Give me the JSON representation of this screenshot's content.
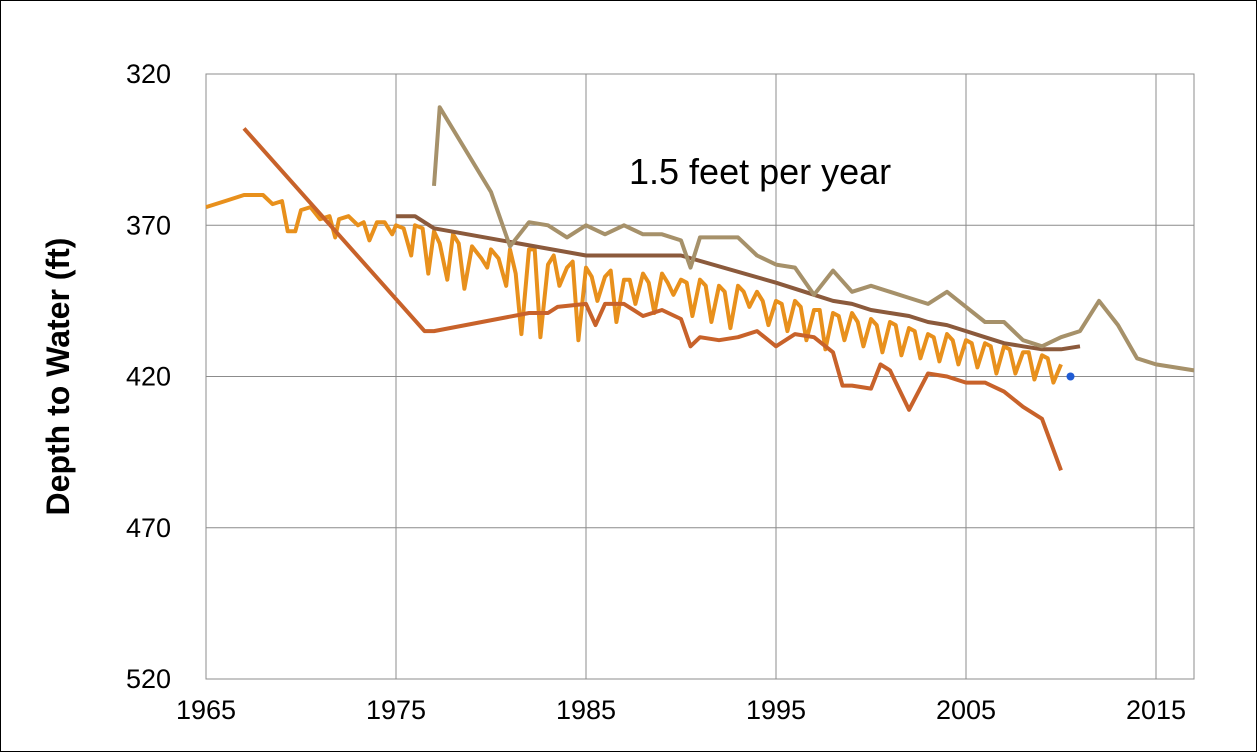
{
  "chart_data": {
    "type": "line",
    "title": "",
    "xlabel": "",
    "ylabel": "Depth to Water (ft)",
    "annotation": "1.5 feet per year",
    "xlim": [
      1965,
      2017
    ],
    "ylim": [
      320,
      520
    ],
    "y_inverted": true,
    "grid": true,
    "legend": "none",
    "x_ticks": [
      1965,
      1975,
      1985,
      1995,
      2005,
      2015
    ],
    "y_ticks": [
      320,
      370,
      420,
      470,
      520
    ],
    "x_tick_labels": [
      "1965",
      "1975",
      "1985",
      "1995",
      "2005",
      "2015"
    ],
    "y_tick_labels": [
      "320",
      "370",
      "420",
      "470",
      "520"
    ],
    "series": [
      {
        "color": "#e8901c",
        "points": [
          [
            1965,
            364
          ],
          [
            1966,
            362
          ],
          [
            1967,
            360
          ],
          [
            1968,
            360
          ],
          [
            1968.5,
            363
          ],
          [
            1969,
            362
          ],
          [
            1969.3,
            372
          ],
          [
            1969.7,
            372
          ],
          [
            1970,
            365
          ],
          [
            1970.5,
            364
          ],
          [
            1971,
            368
          ],
          [
            1971.5,
            367
          ],
          [
            1971.8,
            374
          ],
          [
            1972,
            368
          ],
          [
            1972.5,
            367
          ],
          [
            1973,
            370
          ],
          [
            1973.3,
            369
          ],
          [
            1973.6,
            375
          ],
          [
            1974,
            369
          ],
          [
            1974.4,
            369
          ],
          [
            1974.8,
            373
          ],
          [
            1975,
            370
          ],
          [
            1975.4,
            371
          ],
          [
            1975.8,
            380
          ],
          [
            1976,
            370
          ],
          [
            1976.4,
            371
          ],
          [
            1976.7,
            386
          ],
          [
            1977,
            372
          ],
          [
            1977.3,
            376
          ],
          [
            1977.7,
            388
          ],
          [
            1978,
            373
          ],
          [
            1978.3,
            376
          ],
          [
            1978.6,
            391
          ],
          [
            1979,
            377
          ],
          [
            1979.5,
            381
          ],
          [
            1979.8,
            384
          ],
          [
            1980,
            378
          ],
          [
            1980.4,
            381
          ],
          [
            1980.8,
            390
          ],
          [
            1981,
            378
          ],
          [
            1981.3,
            386
          ],
          [
            1981.6,
            406
          ],
          [
            1982,
            378
          ],
          [
            1982.3,
            378
          ],
          [
            1982.6,
            407
          ],
          [
            1983,
            383
          ],
          [
            1983.3,
            380
          ],
          [
            1983.6,
            390
          ],
          [
            1984,
            384
          ],
          [
            1984.3,
            382
          ],
          [
            1984.6,
            408
          ],
          [
            1985,
            384
          ],
          [
            1985.3,
            387
          ],
          [
            1985.6,
            395
          ],
          [
            1986,
            387
          ],
          [
            1986.3,
            385
          ],
          [
            1986.6,
            402
          ],
          [
            1987,
            388
          ],
          [
            1987.3,
            388
          ],
          [
            1987.6,
            396
          ],
          [
            1988,
            386
          ],
          [
            1988.3,
            389
          ],
          [
            1988.6,
            399
          ],
          [
            1989,
            386
          ],
          [
            1989.3,
            389
          ],
          [
            1989.6,
            393
          ],
          [
            1990,
            388
          ],
          [
            1990.3,
            389
          ],
          [
            1990.6,
            400
          ],
          [
            1991,
            388
          ],
          [
            1991.3,
            390
          ],
          [
            1991.6,
            402
          ],
          [
            1992,
            390
          ],
          [
            1992.3,
            392
          ],
          [
            1992.6,
            404
          ],
          [
            1993,
            390
          ],
          [
            1993.3,
            392
          ],
          [
            1993.6,
            397
          ],
          [
            1994,
            392
          ],
          [
            1994.3,
            395
          ],
          [
            1994.6,
            403
          ],
          [
            1995,
            395
          ],
          [
            1995.3,
            396
          ],
          [
            1995.6,
            405
          ],
          [
            1996,
            395
          ],
          [
            1996.3,
            397
          ],
          [
            1996.6,
            408
          ],
          [
            1997,
            398
          ],
          [
            1997.3,
            398
          ],
          [
            1997.6,
            411
          ],
          [
            1998,
            399
          ],
          [
            1998.3,
            400
          ],
          [
            1998.6,
            408
          ],
          [
            1999,
            399
          ],
          [
            1999.3,
            402
          ],
          [
            1999.6,
            410
          ],
          [
            2000,
            401
          ],
          [
            2000.3,
            403
          ],
          [
            2000.6,
            412
          ],
          [
            2001,
            402
          ],
          [
            2001.3,
            403
          ],
          [
            2001.6,
            413
          ],
          [
            2002,
            404
          ],
          [
            2002.3,
            405
          ],
          [
            2002.6,
            414
          ],
          [
            2003,
            406
          ],
          [
            2003.3,
            407
          ],
          [
            2003.6,
            415
          ],
          [
            2004,
            406
          ],
          [
            2004.3,
            408
          ],
          [
            2004.6,
            416
          ],
          [
            2005,
            408
          ],
          [
            2005.3,
            409
          ],
          [
            2005.6,
            417
          ],
          [
            2006,
            409
          ],
          [
            2006.3,
            410
          ],
          [
            2006.6,
            419
          ],
          [
            2007,
            410
          ],
          [
            2007.3,
            411
          ],
          [
            2007.6,
            419
          ],
          [
            2008,
            412
          ],
          [
            2008.3,
            412
          ],
          [
            2008.6,
            421
          ],
          [
            2009,
            413
          ],
          [
            2009.3,
            414
          ],
          [
            2009.6,
            422
          ],
          [
            2010,
            416
          ]
        ]
      },
      {
        "color": "#c8622a",
        "points": [
          [
            1967,
            338
          ],
          [
            1976.5,
            405
          ],
          [
            1977,
            405
          ],
          [
            1982,
            399
          ],
          [
            1983,
            399
          ],
          [
            1983.5,
            397
          ],
          [
            1985,
            396
          ],
          [
            1985.5,
            403
          ],
          [
            1986,
            396
          ],
          [
            1987,
            396
          ],
          [
            1988,
            400
          ],
          [
            1989,
            398
          ],
          [
            1990,
            401
          ],
          [
            1990.5,
            410
          ],
          [
            1991,
            407
          ],
          [
            1992,
            408
          ],
          [
            1993,
            407
          ],
          [
            1994,
            405
          ],
          [
            1995,
            410
          ],
          [
            1996,
            406
          ],
          [
            1997,
            407
          ],
          [
            1998,
            412
          ],
          [
            1998.5,
            423
          ],
          [
            1999,
            423
          ],
          [
            2000,
            424
          ],
          [
            2000.5,
            416
          ],
          [
            2001,
            418
          ],
          [
            2002,
            431
          ],
          [
            2003,
            419
          ],
          [
            2004,
            420
          ],
          [
            2005,
            422
          ],
          [
            2006,
            422
          ],
          [
            2007,
            425
          ],
          [
            2008,
            430
          ],
          [
            2009,
            434
          ],
          [
            2010,
            451
          ]
        ]
      },
      {
        "color": "#8b5a3c",
        "points": [
          [
            1975,
            367
          ],
          [
            1976,
            367
          ],
          [
            1977,
            371
          ],
          [
            1985,
            380
          ],
          [
            1990,
            380
          ],
          [
            1995,
            389
          ],
          [
            1997,
            393
          ],
          [
            1998,
            395
          ],
          [
            1999,
            396
          ],
          [
            2000,
            398
          ],
          [
            2001,
            399
          ],
          [
            2002,
            400
          ],
          [
            2003,
            402
          ],
          [
            2004,
            403
          ],
          [
            2005,
            405
          ],
          [
            2006,
            407
          ],
          [
            2007,
            409
          ],
          [
            2008,
            410
          ],
          [
            2009,
            411
          ],
          [
            2010,
            411
          ],
          [
            2011,
            410
          ]
        ]
      },
      {
        "color": "#a6916a",
        "points": [
          [
            1977,
            357
          ],
          [
            1977.3,
            331
          ],
          [
            1980,
            359
          ],
          [
            1981,
            377
          ],
          [
            1982,
            369
          ],
          [
            1983,
            370
          ],
          [
            1984,
            374
          ],
          [
            1985,
            370
          ],
          [
            1986,
            373
          ],
          [
            1987,
            370
          ],
          [
            1988,
            373
          ],
          [
            1989,
            373
          ],
          [
            1990,
            375
          ],
          [
            1990.5,
            384
          ],
          [
            1991,
            374
          ],
          [
            1992,
            374
          ],
          [
            1993,
            374
          ],
          [
            1994,
            380
          ],
          [
            1995,
            383
          ],
          [
            1996,
            384
          ],
          [
            1997,
            393
          ],
          [
            1998,
            385
          ],
          [
            1999,
            392
          ],
          [
            2000,
            390
          ],
          [
            2001,
            392
          ],
          [
            2002,
            394
          ],
          [
            2003,
            396
          ],
          [
            2004,
            392
          ],
          [
            2005,
            397
          ],
          [
            2006,
            402
          ],
          [
            2007,
            402
          ],
          [
            2008,
            408
          ],
          [
            2009,
            410
          ],
          [
            2010,
            407
          ],
          [
            2011,
            405
          ],
          [
            2012,
            395
          ],
          [
            2013,
            403
          ],
          [
            2014,
            414
          ],
          [
            2015,
            416
          ],
          [
            2016,
            417
          ],
          [
            2017,
            418
          ]
        ]
      },
      {
        "color": "#1f5bd4",
        "points": [
          [
            2010.5,
            420
          ]
        ]
      }
    ]
  }
}
